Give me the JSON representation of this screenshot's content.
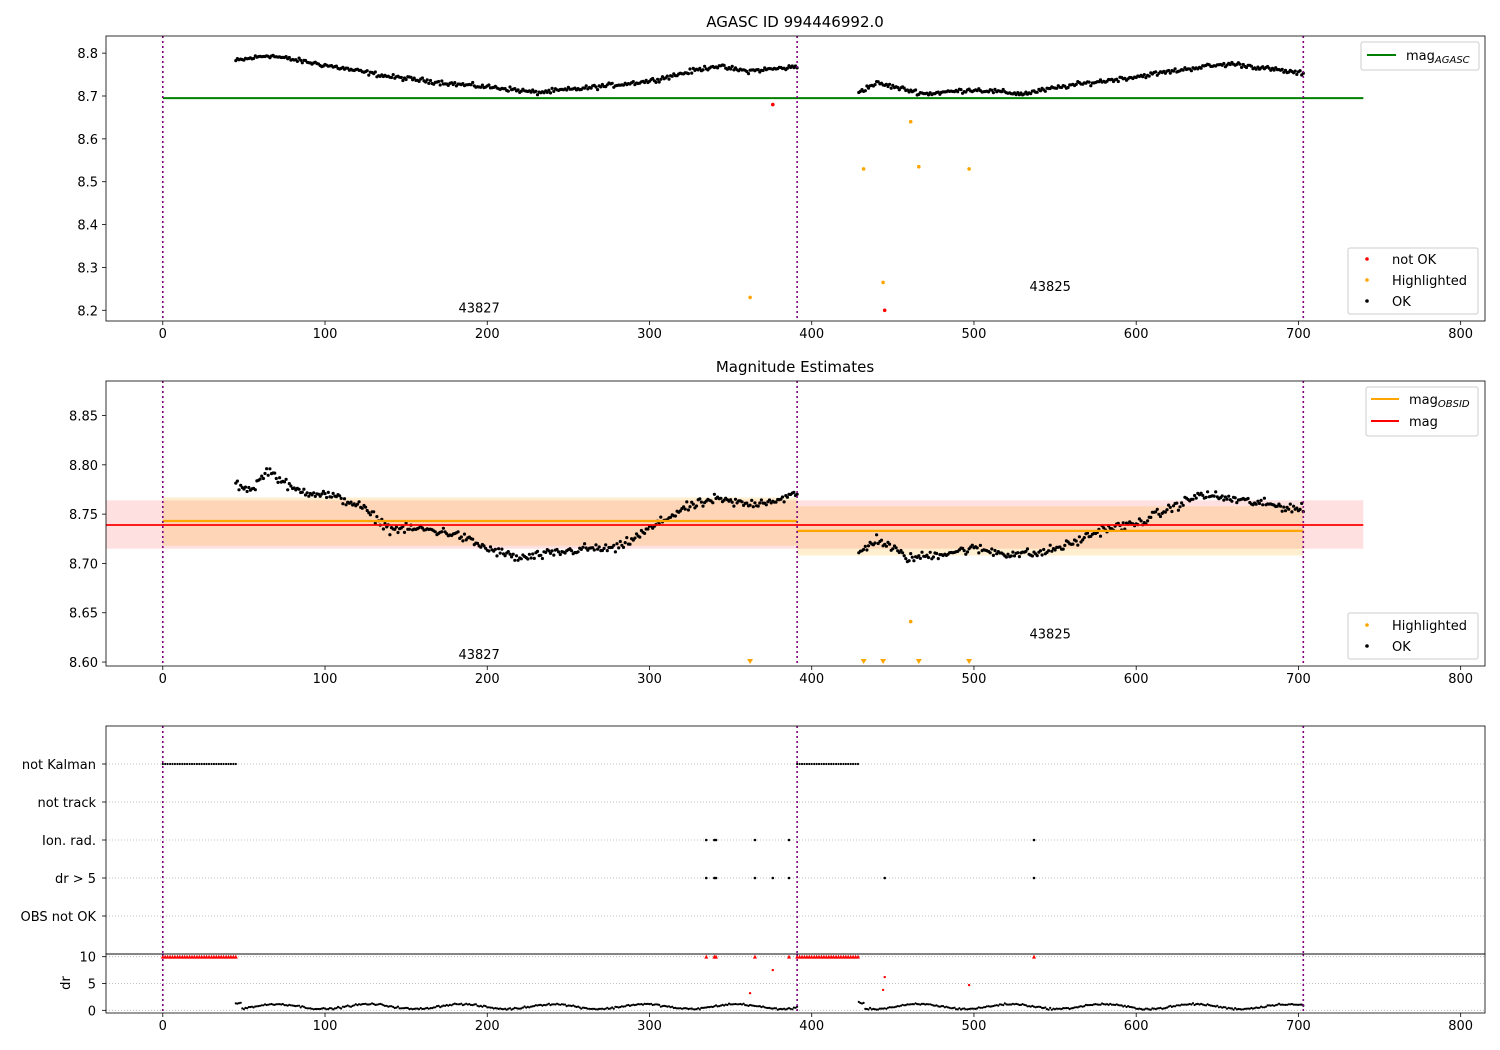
{
  "figure": {
    "title": "AGASC ID 994446992.0"
  },
  "chart_data": [
    {
      "id": "agasc",
      "type": "scatter",
      "title": "AGASC ID 994446992.0",
      "xlim": [
        -35,
        815
      ],
      "ylim": [
        8.175,
        8.84
      ],
      "xticks": [
        0,
        100,
        200,
        300,
        400,
        500,
        600,
        700,
        800
      ],
      "yticks": [
        8.2,
        8.3,
        8.4,
        8.5,
        8.6,
        8.7,
        8.8
      ],
      "ytick_labels": [
        "8.2",
        "8.3",
        "8.4",
        "8.5",
        "8.6",
        "8.7",
        "8.8"
      ],
      "vlines": [
        0,
        391,
        703
      ],
      "legend_top": {
        "placement": "top-right",
        "entries": [
          {
            "label": "mag",
            "sub": "AGASC",
            "color": "#008000"
          }
        ]
      },
      "legend_bottom": {
        "placement": "bottom-right",
        "entries": [
          {
            "label": "not OK",
            "color": "#ff0000"
          },
          {
            "label": "Highlighted",
            "color": "#ffa500"
          },
          {
            "label": "OK",
            "color": "#000000"
          }
        ]
      },
      "hline": {
        "y": 8.695,
        "x0": 0,
        "x1": 740,
        "color": "#008000"
      },
      "annotations": [
        {
          "text": "43827",
          "x": 195,
          "y": 8.2
        },
        {
          "text": "43825",
          "x": 547,
          "y": 8.25
        }
      ],
      "ok_segments": [
        {
          "x0": 45,
          "x1": 391,
          "anchors": [
            [
              45,
              8.782
            ],
            [
              65,
              8.795
            ],
            [
              100,
              8.772
            ],
            [
              140,
              8.745
            ],
            [
              180,
              8.728
            ],
            [
              210,
              8.718
            ],
            [
              230,
              8.708
            ],
            [
              260,
              8.718
            ],
            [
              300,
              8.735
            ],
            [
              340,
              8.77
            ],
            [
              360,
              8.758
            ],
            [
              391,
              8.768
            ]
          ]
        },
        {
          "x0": 429,
          "x1": 703,
          "anchors": [
            [
              429,
              8.71
            ],
            [
              440,
              8.73
            ],
            [
              470,
              8.705
            ],
            [
              500,
              8.715
            ],
            [
              530,
              8.705
            ],
            [
              560,
              8.725
            ],
            [
              600,
              8.745
            ],
            [
              640,
              8.768
            ],
            [
              660,
              8.775
            ],
            [
              703,
              8.752
            ]
          ]
        }
      ],
      "highlighted": [
        [
          362,
          8.23
        ],
        [
          432,
          8.53
        ],
        [
          444,
          8.265
        ],
        [
          461,
          8.64
        ],
        [
          466,
          8.535
        ],
        [
          497,
          8.53
        ]
      ],
      "not_ok": [
        [
          376,
          8.68
        ],
        [
          445,
          8.2
        ]
      ]
    },
    {
      "id": "estimates",
      "type": "scatter",
      "title": "Magnitude Estimates",
      "xlim": [
        -35,
        815
      ],
      "ylim": [
        8.596,
        8.885
      ],
      "xticks": [
        0,
        100,
        200,
        300,
        400,
        500,
        600,
        700,
        800
      ],
      "yticks": [
        8.6,
        8.65,
        8.7,
        8.75,
        8.8,
        8.85
      ],
      "ytick_labels": [
        "8.60",
        "8.65",
        "8.70",
        "8.75",
        "8.80",
        "8.85"
      ],
      "vlines": [
        0,
        391,
        703
      ],
      "legend_top": {
        "placement": "top-right",
        "entries": [
          {
            "label": "mag",
            "sub": "OBSID",
            "color": "#ffa500"
          },
          {
            "label": "mag",
            "color": "#ff0000"
          }
        ]
      },
      "legend_bottom": {
        "placement": "bottom-right",
        "entries": [
          {
            "label": "Highlighted",
            "color": "#ffa500"
          },
          {
            "label": "OK",
            "color": "#000000"
          }
        ]
      },
      "mag_line": {
        "y": 8.739,
        "band": [
          8.715,
          8.764
        ],
        "x0": -35,
        "x1": 740,
        "color": "#ff0000"
      },
      "obsid_lines": [
        {
          "x0": 0,
          "x1": 391,
          "y": 8.743,
          "band": [
            8.718,
            8.767
          ]
        },
        {
          "x0": 391,
          "x1": 703,
          "y": 8.733,
          "band": [
            8.708,
            8.758
          ]
        }
      ],
      "annotations": [
        {
          "text": "43827",
          "x": 195,
          "y": 8.605
        },
        {
          "text": "43825",
          "x": 547,
          "y": 8.626
        }
      ],
      "ok_segments": [
        {
          "x0": 45,
          "x1": 391,
          "anchors": [
            [
              45,
              8.78
            ],
            [
              55,
              8.775
            ],
            [
              65,
              8.795
            ],
            [
              80,
              8.775
            ],
            [
              100,
              8.77
            ],
            [
              120,
              8.76
            ],
            [
              140,
              8.735
            ],
            [
              160,
              8.735
            ],
            [
              180,
              8.73
            ],
            [
              200,
              8.715
            ],
            [
              220,
              8.705
            ],
            [
              240,
              8.71
            ],
            [
              260,
              8.715
            ],
            [
              280,
              8.715
            ],
            [
              300,
              8.735
            ],
            [
              320,
              8.755
            ],
            [
              340,
              8.765
            ],
            [
              360,
              8.76
            ],
            [
              380,
              8.765
            ],
            [
              391,
              8.77
            ]
          ]
        },
        {
          "x0": 429,
          "x1": 703,
          "anchors": [
            [
              429,
              8.71
            ],
            [
              440,
              8.725
            ],
            [
              460,
              8.705
            ],
            [
              480,
              8.71
            ],
            [
              500,
              8.715
            ],
            [
              520,
              8.71
            ],
            [
              540,
              8.71
            ],
            [
              560,
              8.72
            ],
            [
              580,
              8.735
            ],
            [
              600,
              8.74
            ],
            [
              620,
              8.755
            ],
            [
              640,
              8.77
            ],
            [
              660,
              8.765
            ],
            [
              680,
              8.76
            ],
            [
              703,
              8.755
            ]
          ]
        }
      ],
      "highlighted": [
        [
          461,
          8.641
        ]
      ],
      "clipped_markers": [
        362,
        432,
        444,
        466,
        497
      ]
    },
    {
      "id": "flags",
      "type": "scatter",
      "xlim": [
        -35,
        815
      ],
      "vlines": [
        0,
        391,
        703
      ],
      "rows": [
        "not Kalman",
        "not track",
        "Ion. rad.",
        "dr > 5",
        "OBS not OK"
      ],
      "not_kalman_ranges": [
        [
          0,
          45
        ],
        [
          391,
          429
        ]
      ],
      "ion_rad_points": [
        335,
        340,
        341,
        365,
        386,
        537
      ],
      "dr5_points": [
        335,
        340,
        341,
        365,
        376,
        386,
        445,
        537
      ]
    },
    {
      "id": "dr",
      "type": "scatter",
      "ylabel": "dr",
      "xlim": [
        -35,
        815
      ],
      "ylim": [
        -0.5,
        10.5
      ],
      "xticks": [
        0,
        100,
        200,
        300,
        400,
        500,
        600,
        700,
        800
      ],
      "yticks": [
        0,
        5,
        10
      ],
      "vlines": [
        0,
        391,
        703
      ],
      "clipped_ranges": [
        [
          0,
          45
        ],
        [
          391,
          429
        ]
      ],
      "clipped_points": [
        335,
        340,
        341,
        365,
        386,
        537
      ],
      "high_points": [
        [
          362,
          3.2
        ],
        [
          376,
          7.5
        ],
        [
          444,
          3.8
        ],
        [
          445,
          6.2
        ],
        [
          497,
          4.7
        ]
      ],
      "ok_segments": [
        [
          45,
          391
        ],
        [
          429,
          703
        ]
      ]
    }
  ]
}
